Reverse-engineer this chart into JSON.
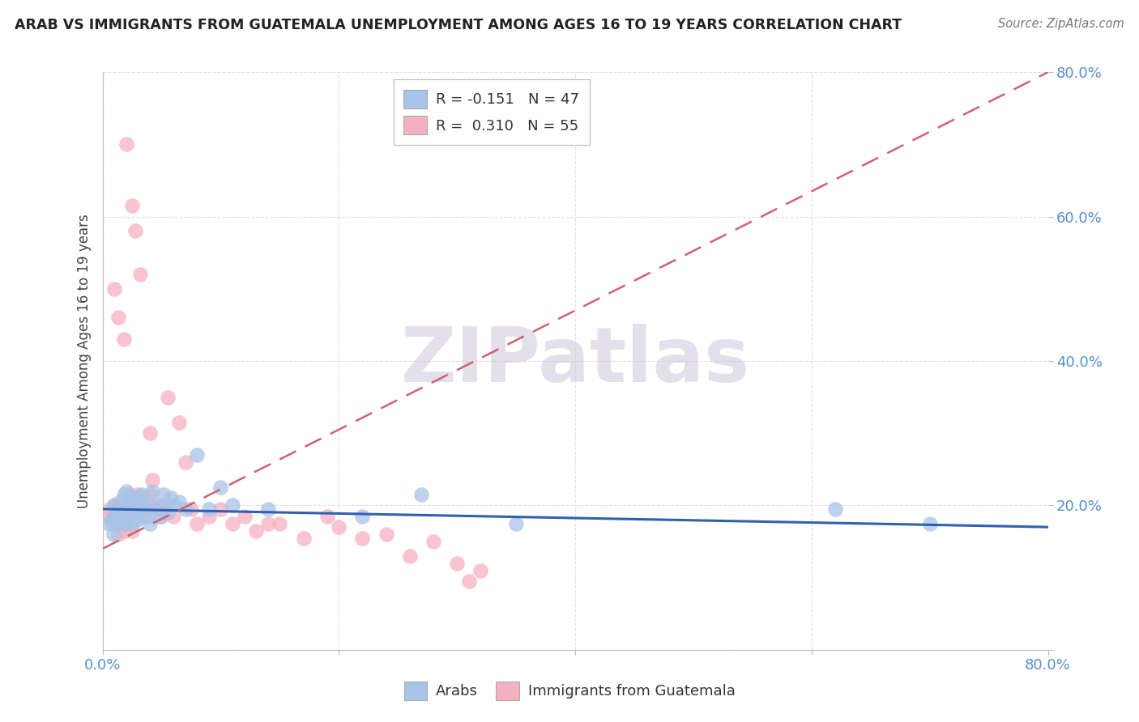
{
  "title": "ARAB VS IMMIGRANTS FROM GUATEMALA UNEMPLOYMENT AMONG AGES 16 TO 19 YEARS CORRELATION CHART",
  "source": "Source: ZipAtlas.com",
  "ylabel": "Unemployment Among Ages 16 to 19 years",
  "arab_color": "#a8c4e8",
  "guatemala_color": "#f5b0c0",
  "arab_line_color": "#3060b0",
  "guatemala_line_color": "#d06070",
  "watermark_text": "ZIPatlas",
  "watermark_color": "#cdc8dc",
  "tick_color": "#5590cc",
  "xmin": 0.0,
  "xmax": 0.8,
  "ymin": 0.0,
  "ymax": 0.8,
  "arab_R": -0.151,
  "arab_N": 47,
  "guatemala_R": 0.31,
  "guatemala_N": 55,
  "arab_x": [
    0.005,
    0.008,
    0.009,
    0.01,
    0.01,
    0.012,
    0.013,
    0.015,
    0.015,
    0.018,
    0.018,
    0.02,
    0.02,
    0.022,
    0.022,
    0.025,
    0.025,
    0.028,
    0.028,
    0.03,
    0.03,
    0.032,
    0.033,
    0.035,
    0.038,
    0.04,
    0.04,
    0.042,
    0.045,
    0.048,
    0.05,
    0.052,
    0.055,
    0.058,
    0.06,
    0.065,
    0.07,
    0.08,
    0.09,
    0.1,
    0.11,
    0.14,
    0.22,
    0.27,
    0.35,
    0.62,
    0.7
  ],
  "arab_y": [
    0.175,
    0.18,
    0.16,
    0.2,
    0.185,
    0.195,
    0.175,
    0.19,
    0.205,
    0.18,
    0.215,
    0.175,
    0.22,
    0.19,
    0.2,
    0.175,
    0.21,
    0.195,
    0.185,
    0.18,
    0.21,
    0.2,
    0.215,
    0.195,
    0.185,
    0.2,
    0.175,
    0.22,
    0.195,
    0.185,
    0.2,
    0.215,
    0.19,
    0.21,
    0.2,
    0.205,
    0.195,
    0.27,
    0.195,
    0.225,
    0.2,
    0.195,
    0.185,
    0.215,
    0.175,
    0.195,
    0.175
  ],
  "guatemala_x": [
    0.005,
    0.006,
    0.008,
    0.01,
    0.01,
    0.012,
    0.013,
    0.015,
    0.015,
    0.018,
    0.018,
    0.018,
    0.02,
    0.02,
    0.022,
    0.022,
    0.025,
    0.025,
    0.028,
    0.03,
    0.03,
    0.032,
    0.035,
    0.035,
    0.038,
    0.04,
    0.04,
    0.042,
    0.045,
    0.048,
    0.05,
    0.052,
    0.055,
    0.06,
    0.065,
    0.07,
    0.075,
    0.08,
    0.09,
    0.1,
    0.11,
    0.12,
    0.13,
    0.14,
    0.15,
    0.17,
    0.19,
    0.2,
    0.22,
    0.24,
    0.26,
    0.28,
    0.3,
    0.31,
    0.32
  ],
  "guatemala_y": [
    0.185,
    0.195,
    0.175,
    0.185,
    0.2,
    0.175,
    0.16,
    0.195,
    0.185,
    0.195,
    0.175,
    0.165,
    0.2,
    0.185,
    0.195,
    0.215,
    0.19,
    0.165,
    0.2,
    0.2,
    0.215,
    0.195,
    0.205,
    0.185,
    0.195,
    0.3,
    0.215,
    0.235,
    0.2,
    0.195,
    0.185,
    0.195,
    0.35,
    0.185,
    0.315,
    0.26,
    0.195,
    0.175,
    0.185,
    0.195,
    0.175,
    0.185,
    0.165,
    0.175,
    0.175,
    0.155,
    0.185,
    0.17,
    0.155,
    0.16,
    0.13,
    0.15,
    0.12,
    0.095,
    0.11
  ],
  "guatemala_outlier_x": [
    0.02,
    0.025,
    0.028,
    0.032,
    0.01,
    0.013,
    0.018
  ],
  "guatemala_outlier_y": [
    0.7,
    0.615,
    0.58,
    0.52,
    0.5,
    0.46,
    0.43
  ]
}
